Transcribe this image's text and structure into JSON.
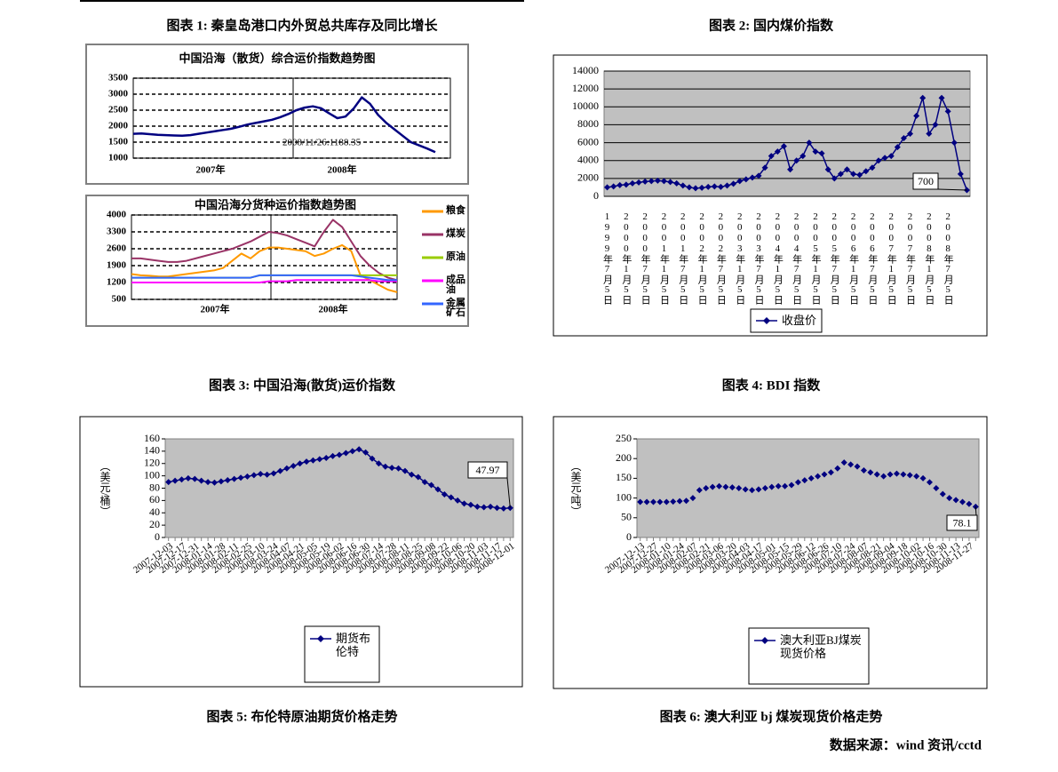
{
  "captions": [
    "图表 1: 秦皇岛港口内外贸总共库存及同比增长",
    "图表 2: 国内煤价指数",
    "图表 3: 中国沿海(散货)运价指数",
    "图表 4: BDI 指数",
    "图表 5: 布伦特原油期货价格走势",
    "图表 6: 澳大利亚 bj 煤炭现货价格走势"
  ],
  "source": "数据来源：wind 资讯/cctd",
  "chart_data": [
    {
      "type": "line",
      "title": "中国沿海（散货）综合运价指数趋势图",
      "x_labels": [
        "2007年",
        "2008年"
      ],
      "ylim": [
        1000,
        3500
      ],
      "yticks": [
        1000,
        1500,
        2000,
        2500,
        3000,
        3500
      ],
      "grid": true,
      "grid_style": "dashed",
      "annotation": "2008/11/26:1188.35",
      "series": [
        {
          "name": null,
          "color": "#000080",
          "values": [
            1760,
            1770,
            1750,
            1730,
            1720,
            1710,
            1700,
            1720,
            1760,
            1800,
            1840,
            1880,
            1920,
            1980,
            2050,
            2100,
            2150,
            2200,
            2280,
            2380,
            2500,
            2580,
            2620,
            2560,
            2400,
            2250,
            2300,
            2550,
            2900,
            2700,
            2350,
            2100,
            1900,
            1700,
            1500,
            1400,
            1300,
            1188.35
          ]
        }
      ]
    },
    {
      "type": "line",
      "title": "中国沿海分货种运价指数趋势图",
      "x_labels": [
        "2007年",
        "2008年"
      ],
      "ylim": [
        500,
        4000
      ],
      "yticks": [
        500,
        1200,
        1900,
        2600,
        3300,
        4000
      ],
      "grid": true,
      "grid_style": "dashed",
      "legend": "right",
      "series": [
        {
          "name": "粮食",
          "color": "#ff9900",
          "values": [
            1550,
            1500,
            1480,
            1450,
            1450,
            1500,
            1550,
            1600,
            1650,
            1700,
            1800,
            2100,
            2400,
            2200,
            2500,
            2650,
            2650,
            2600,
            2550,
            2500,
            2300,
            2400,
            2600,
            2750,
            2500,
            1500,
            1300,
            1100,
            900,
            800
          ]
        },
        {
          "name": "煤炭",
          "color": "#993366",
          "values": [
            2200,
            2200,
            2150,
            2100,
            2050,
            2050,
            2100,
            2200,
            2300,
            2400,
            2500,
            2600,
            2750,
            2900,
            3100,
            3300,
            3250,
            3150,
            3000,
            2850,
            2700,
            3300,
            3800,
            3500,
            2900,
            2300,
            1900,
            1600,
            1400,
            1300
          ]
        },
        {
          "name": "原油",
          "color": "#99cc00",
          "values": [
            1400,
            1400,
            1400,
            1400,
            1400,
            1400,
            1400,
            1400,
            1400,
            1400,
            1400,
            1400,
            1400,
            1400,
            1500,
            1500,
            1500,
            1500,
            1500,
            1500,
            1500,
            1500,
            1500,
            1500,
            1500,
            1500,
            1500,
            1500,
            1500,
            1500
          ]
        },
        {
          "name": "成品油",
          "color": "#ff00ff",
          "values": [
            1200,
            1200,
            1200,
            1200,
            1200,
            1200,
            1200,
            1200,
            1200,
            1200,
            1200,
            1200,
            1200,
            1200,
            1200,
            1250,
            1250,
            1250,
            1300,
            1300,
            1300,
            1300,
            1300,
            1300,
            1300,
            1300,
            1300,
            1250,
            1250,
            1250
          ]
        },
        {
          "name": "金属矿石",
          "color": "#3366ff",
          "values": [
            1400,
            1400,
            1400,
            1400,
            1400,
            1400,
            1400,
            1400,
            1400,
            1400,
            1400,
            1400,
            1400,
            1400,
            1500,
            1500,
            1500,
            1500,
            1500,
            1500,
            1500,
            1500,
            1500,
            1500,
            1500,
            1450,
            1400,
            1350,
            1300,
            1300
          ]
        }
      ]
    },
    {
      "type": "line",
      "ylim": [
        0,
        14000
      ],
      "yticks": [
        0,
        2000,
        4000,
        6000,
        8000,
        10000,
        12000,
        14000
      ],
      "grid": true,
      "grid_style": "solid",
      "annotation": "700",
      "legend": "bottom",
      "categories": [
        "1999年7月5日",
        null,
        null,
        "2000年1月5日",
        null,
        null,
        "2000年7月5日",
        null,
        null,
        "2001年1月5日",
        null,
        null,
        "2001年7月5日",
        null,
        null,
        "2002年1月5日",
        null,
        null,
        "2002年7月5日",
        null,
        null,
        "2003年1月5日",
        null,
        null,
        "2003年7月5日",
        null,
        null,
        "2004年1月5日",
        null,
        null,
        "2004年7月5日",
        null,
        null,
        "2005年1月5日",
        null,
        null,
        "2005年7月5日",
        null,
        null,
        "2006年1月5日",
        null,
        null,
        "2006年7月5日",
        null,
        null,
        "2007年1月5日",
        null,
        null,
        "2007年7月5日",
        null,
        null,
        "2008年1月5日",
        null,
        null,
        "2008年7月5日",
        null,
        null,
        null
      ],
      "series": [
        {
          "name": "收盘价",
          "color": "#000080",
          "marker": "diamond",
          "values": [
            1000,
            1100,
            1250,
            1300,
            1450,
            1550,
            1650,
            1700,
            1750,
            1700,
            1600,
            1450,
            1200,
            1000,
            900,
            950,
            1050,
            1100,
            1050,
            1200,
            1400,
            1700,
            1900,
            2100,
            2300,
            3200,
            4500,
            5000,
            5600,
            3000,
            4000,
            4500,
            6000,
            5000,
            4800,
            3000,
            2000,
            2500,
            3000,
            2500,
            2400,
            2800,
            3200,
            4000,
            4300,
            4500,
            5500,
            6500,
            7000,
            9000,
            11000,
            7000,
            8000,
            11000,
            9500,
            6000,
            2500,
            700
          ]
        }
      ]
    },
    {
      "type": "line",
      "ylabel": "（美元/桶）",
      "ylim": [
        0,
        160
      ],
      "yticks": [
        0,
        20,
        40,
        60,
        80,
        100,
        120,
        140,
        160
      ],
      "grid": false,
      "annotation": "47.97",
      "legend": "bottom",
      "categories": [
        "2007-12-03",
        null,
        "2007-12-17",
        null,
        "2007-12-31",
        null,
        "2008-01-14",
        null,
        "2008-01-28",
        null,
        "2008-02-11",
        null,
        "2008-02-25",
        null,
        "2008-03-10",
        null,
        "2008-03-24",
        null,
        "2008-04-07",
        null,
        "2008-04-21",
        null,
        "2008-05-05",
        null,
        "2008-05-19",
        null,
        "2008-06-02",
        null,
        "2008-06-16",
        null,
        "2008-06-30",
        null,
        "2008-07-14",
        null,
        "2008-07-28",
        null,
        "2008-08-11",
        null,
        "2008-08-25",
        null,
        "2008-09-08",
        null,
        "2008-09-22",
        null,
        "2008-10-06",
        null,
        "2008-10-20",
        null,
        "2008-11-03",
        null,
        "2008-11-17",
        null,
        "2008-12-01"
      ],
      "series": [
        {
          "name": "期货布伦特",
          "color": "#000080",
          "marker": "diamond",
          "values": [
            90,
            92,
            94,
            96,
            95,
            92,
            90,
            89,
            91,
            93,
            95,
            97,
            99,
            101,
            103,
            102,
            104,
            108,
            112,
            116,
            120,
            123,
            125,
            127,
            129,
            132,
            134,
            137,
            140,
            143,
            138,
            128,
            120,
            115,
            113,
            112,
            108,
            102,
            98,
            90,
            85,
            78,
            70,
            65,
            60,
            55,
            53,
            50,
            49,
            50,
            48,
            47,
            47.97
          ]
        }
      ]
    },
    {
      "type": "line",
      "ylabel": "（美元/吨）",
      "ylim": [
        0,
        250
      ],
      "yticks": [
        0,
        50,
        100,
        150,
        200,
        250
      ],
      "grid": false,
      "annotation": "78.1",
      "legend": "bottom",
      "categories": [
        "2007-12-13",
        null,
        "2007-12-27",
        null,
        "2008-01-10",
        null,
        "2008-01-24",
        null,
        "2008-02-07",
        null,
        "2008-02-21",
        null,
        "2008-03-06",
        null,
        "2008-03-20",
        null,
        "2008-04-03",
        null,
        "2008-04-17",
        null,
        "2008-05-01",
        null,
        "2008-05-15",
        null,
        "2008-05-29",
        null,
        "2008-06-12",
        null,
        "2008-06-26",
        null,
        "2008-07-10",
        null,
        "2008-07-24",
        null,
        "2008-08-07",
        null,
        "2008-08-21",
        null,
        "2008-09-04",
        null,
        "2008-09-18",
        null,
        "2008-10-02",
        null,
        "2008-10-16",
        null,
        "2008-10-30",
        null,
        "2008-11-13",
        null,
        "2008-11-27",
        null
      ],
      "series": [
        {
          "name": "澳大利亚BJ煤炭现货价格",
          "color": "#000080",
          "marker": "diamond",
          "connect": false,
          "values": [
            90,
            90,
            90,
            90,
            90,
            91,
            92,
            93,
            100,
            120,
            125,
            128,
            130,
            128,
            127,
            125,
            122,
            120,
            122,
            125,
            128,
            130,
            130,
            133,
            140,
            145,
            150,
            155,
            160,
            165,
            175,
            190,
            185,
            180,
            170,
            165,
            160,
            155,
            160,
            162,
            160,
            158,
            155,
            150,
            140,
            125,
            110,
            100,
            95,
            90,
            85,
            78.1
          ]
        }
      ]
    }
  ]
}
